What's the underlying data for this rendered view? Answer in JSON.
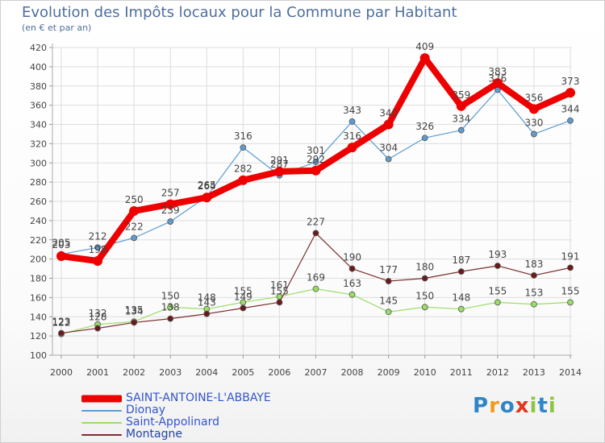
{
  "title": "Evolution des Impôts locaux pour la Commune par Habitant",
  "subtitle": "(en € et par an)",
  "logo": {
    "letters": [
      "P",
      "r",
      "o",
      "x",
      "i",
      "t",
      "i"
    ],
    "colors": [
      "#2e86c9",
      "#f29b1d",
      "#2e86c9",
      "#e2361d",
      "#8dc63f",
      "#2e86c9",
      "#8dc63f"
    ]
  },
  "chart_data": {
    "type": "line",
    "x": [
      2000,
      2001,
      2002,
      2003,
      2004,
      2005,
      2006,
      2007,
      2008,
      2009,
      2010,
      2011,
      2012,
      2013,
      2014
    ],
    "x_tick_labels": [
      "2000",
      "2001",
      "2002",
      "2003",
      "2004",
      "2005",
      "2006",
      "2007",
      "2008",
      "2009",
      "2010",
      "2011",
      "2012",
      "2013",
      "2014"
    ],
    "ylim": [
      100,
      420
    ],
    "y_ticks": [
      100,
      120,
      140,
      160,
      180,
      200,
      220,
      240,
      260,
      280,
      300,
      320,
      340,
      360,
      380,
      400,
      420
    ],
    "grid": true,
    "legend_position": "bottom-left",
    "series": [
      {
        "name": "SAINT-ANTOINE-L'ABBAYE",
        "color": "#ee0000",
        "marker": "#ee0000",
        "emphasis": true,
        "values": [
          203,
          198,
          250,
          257,
          264,
          282,
          291,
          292,
          316,
          340,
          409,
          359,
          383,
          356,
          373
        ],
        "labels": [
          "203",
          "198",
          "250",
          "257",
          "264",
          "282",
          "291",
          "292",
          "316",
          "340",
          "409",
          "359",
          "383",
          "356",
          "373"
        ]
      },
      {
        "name": "Dionay",
        "color": "#5d9bd1",
        "marker": "#5d9bd1",
        "values": [
          205,
          212,
          222,
          239,
          265,
          316,
          287,
          301,
          343,
          304,
          326,
          334,
          376,
          330,
          344
        ],
        "labels": [
          "205",
          "212",
          "222",
          "239",
          "265",
          "316",
          "287",
          "301",
          "343",
          "304",
          "326",
          "334",
          "376",
          "330",
          "344"
        ]
      },
      {
        "name": "Saint-Appolinard",
        "color": "#99dd66",
        "marker": "#99dd66",
        "values": [
          122,
          132,
          135,
          150,
          148,
          155,
          161,
          169,
          163,
          145,
          150,
          148,
          155,
          153,
          155
        ],
        "labels": [
          "122",
          "132",
          "135",
          "150",
          "148",
          "155",
          "161",
          "169",
          "163",
          "145",
          "150",
          "148",
          "155",
          "153",
          "155"
        ]
      },
      {
        "name": "Montagne",
        "color": "#7a2e2e",
        "marker": "#6b1a1a",
        "values": [
          123,
          128,
          134,
          138,
          143,
          149,
          155,
          227,
          190,
          177,
          180,
          187,
          193,
          183,
          191
        ],
        "labels": [
          "123",
          "128",
          "134",
          "138",
          "143",
          "149",
          "155",
          "227",
          "190",
          "177",
          "180",
          "187",
          "193",
          "183",
          "191"
        ]
      }
    ]
  }
}
